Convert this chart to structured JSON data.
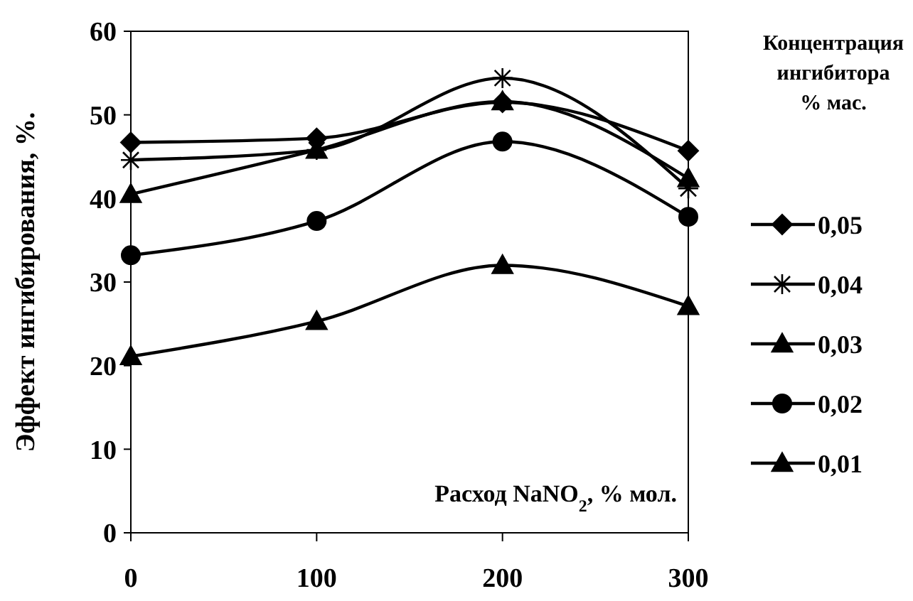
{
  "chart_data": {
    "type": "line",
    "xlabel": "Расход NaNO$_{2}$, % мол.",
    "ylabel": "Эффект ингибирования, %.",
    "legend_title": "Концентрация ингибитора % мас.",
    "legend": "right",
    "grid": false,
    "line_style": "solid",
    "x": [
      0,
      100,
      200,
      300
    ],
    "xlim": [
      0,
      300
    ],
    "xticks": [
      0,
      100,
      200,
      300
    ],
    "ylim": [
      0,
      60
    ],
    "yticks": [
      0,
      10,
      20,
      30,
      40,
      50,
      60
    ],
    "series": [
      {
        "name": "0,05",
        "color": "#000000",
        "marker": "diamond",
        "values": [
          46.7,
          47.2,
          51.5,
          45.7
        ]
      },
      {
        "name": "0,04",
        "color": "#000000",
        "marker": "cross",
        "values": [
          44.6,
          45.8,
          54.4,
          41.2
        ]
      },
      {
        "name": "0,03",
        "color": "#000000",
        "marker": "triangle",
        "values": [
          40.5,
          45.8,
          51.6,
          42.4
        ]
      },
      {
        "name": "0,02",
        "color": "#000000",
        "marker": "circle",
        "values": [
          33.2,
          37.3,
          46.8,
          37.8
        ]
      },
      {
        "name": "0,01",
        "color": "#000000",
        "marker": "triangle",
        "values": [
          21.1,
          25.3,
          32.0,
          27.1
        ]
      }
    ]
  }
}
